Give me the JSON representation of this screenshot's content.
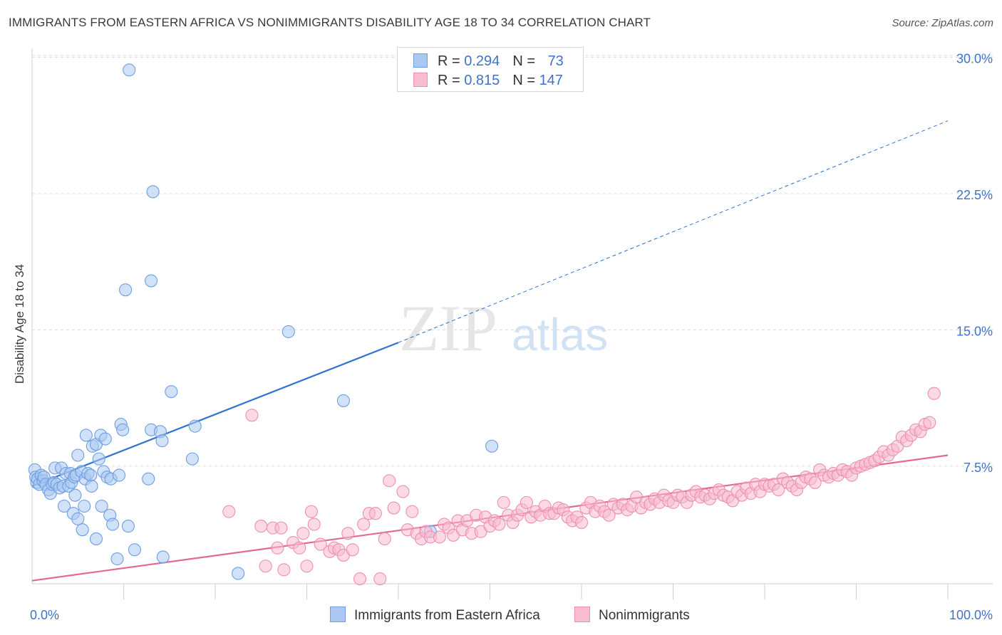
{
  "title": "IMMIGRANTS FROM EASTERN AFRICA VS NONIMMIGRANTS DISABILITY AGE 18 TO 34 CORRELATION CHART",
  "source": "Source: ZipAtlas.com",
  "watermark": {
    "zip": "ZIP",
    "atlas": "atlas"
  },
  "legend": {
    "blue": {
      "r_label": "R = ",
      "r_value": "0.294",
      "n_label": "N = ",
      "n_value": "73"
    },
    "pink": {
      "r_label": "R = ",
      "r_value": "0.815",
      "n_label": "N = ",
      "n_value": "147"
    }
  },
  "colors": {
    "blue_fill": "#aac8f2",
    "blue_stroke": "#6f9ee0",
    "blue_line": "#2f72cf",
    "pink_fill": "#f7bccf",
    "pink_stroke": "#ec8fae",
    "pink_line": "#e2679a",
    "tick_text": "#3f73c8"
  },
  "chart_data": {
    "type": "scatter",
    "title": "IMMIGRANTS FROM EASTERN AFRICA VS NONIMMIGRANTS DISABILITY AGE 18 TO 34 CORRELATION CHART",
    "xlabel": "",
    "ylabel": "Disability Age 18 to 34",
    "xlim": [
      0,
      100
    ],
    "ylim": [
      0,
      31
    ],
    "x_tick_labels": [
      {
        "value": 0,
        "label": "0.0%"
      },
      {
        "value": 100,
        "label": "100.0%"
      }
    ],
    "y_ticks": [
      {
        "value": 7.5,
        "label": "7.5%"
      },
      {
        "value": 15,
        "label": "15.0%"
      },
      {
        "value": 22.5,
        "label": "22.5%"
      },
      {
        "value": 30,
        "label": "30.0%"
      }
    ],
    "grid": true,
    "legend_position": "top-center",
    "series": [
      {
        "name": "Immigrants from Eastern Africa",
        "color": "blue",
        "trend": {
          "x1": 0,
          "y1": 6.4,
          "x2": 40,
          "y2": 14.3,
          "dash_to_x": 100,
          "dash_to_y": 26.5
        },
        "points": [
          [
            0.3,
            7.3
          ],
          [
            0.4,
            6.9
          ],
          [
            0.5,
            6.6
          ],
          [
            0.6,
            6.8
          ],
          [
            0.8,
            6.5
          ],
          [
            1.0,
            7.0
          ],
          [
            1.2,
            6.7
          ],
          [
            1.3,
            6.9
          ],
          [
            1.5,
            6.5
          ],
          [
            1.8,
            6.2
          ],
          [
            2.0,
            6.0
          ],
          [
            2.2,
            6.5
          ],
          [
            2.4,
            6.6
          ],
          [
            2.5,
            7.4
          ],
          [
            2.7,
            6.5
          ],
          [
            3.0,
            6.3
          ],
          [
            3.2,
            7.4
          ],
          [
            3.4,
            6.4
          ],
          [
            3.5,
            5.3
          ],
          [
            3.7,
            7.1
          ],
          [
            4.0,
            6.4
          ],
          [
            4.2,
            7.1
          ],
          [
            4.3,
            6.6
          ],
          [
            4.5,
            4.9
          ],
          [
            4.6,
            6.9
          ],
          [
            4.7,
            5.9
          ],
          [
            4.8,
            7.0
          ],
          [
            5.0,
            4.6
          ],
          [
            5.0,
            8.1
          ],
          [
            5.4,
            7.2
          ],
          [
            5.5,
            4.0
          ],
          [
            5.7,
            5.3
          ],
          [
            5.8,
            6.8
          ],
          [
            5.9,
            9.2
          ],
          [
            6.1,
            7.1
          ],
          [
            6.4,
            7.0
          ],
          [
            6.5,
            6.4
          ],
          [
            6.6,
            8.6
          ],
          [
            7.0,
            8.7
          ],
          [
            7.0,
            3.5
          ],
          [
            7.3,
            7.9
          ],
          [
            7.5,
            9.2
          ],
          [
            7.6,
            5.3
          ],
          [
            7.8,
            7.2
          ],
          [
            8.0,
            9.0
          ],
          [
            8.2,
            6.9
          ],
          [
            8.5,
            4.8
          ],
          [
            8.6,
            6.8
          ],
          [
            8.8,
            4.3
          ],
          [
            9.3,
            2.4
          ],
          [
            9.5,
            7.0
          ],
          [
            9.7,
            9.8
          ],
          [
            9.9,
            9.5
          ],
          [
            10.2,
            17.2
          ],
          [
            10.5,
            4.2
          ],
          [
            10.6,
            29.3
          ],
          [
            11.2,
            2.9
          ],
          [
            12.7,
            6.8
          ],
          [
            13.0,
            17.7
          ],
          [
            13.0,
            9.5
          ],
          [
            13.2,
            22.6
          ],
          [
            14.0,
            9.4
          ],
          [
            14.2,
            8.9
          ],
          [
            14.3,
            2.5
          ],
          [
            15.2,
            11.6
          ],
          [
            17.5,
            7.9
          ],
          [
            17.8,
            9.7
          ],
          [
            22.5,
            1.6
          ],
          [
            28.0,
            14.9
          ],
          [
            34.0,
            11.1
          ],
          [
            43.5,
            3.9
          ],
          [
            50.2,
            8.6
          ]
        ]
      },
      {
        "name": "Nonimmigrants",
        "color": "pink",
        "trend": {
          "x1": 0,
          "y1": 1.2,
          "x2": 100,
          "y2": 8.1
        },
        "points": [
          [
            21.5,
            5.0
          ],
          [
            24.0,
            10.3
          ],
          [
            25.0,
            4.2
          ],
          [
            25.5,
            2.0
          ],
          [
            26.3,
            4.1
          ],
          [
            26.8,
            3.0
          ],
          [
            27.2,
            4.1
          ],
          [
            27.5,
            1.8
          ],
          [
            28.5,
            3.3
          ],
          [
            29.2,
            3.0
          ],
          [
            29.6,
            3.8
          ],
          [
            30.0,
            2.0
          ],
          [
            30.5,
            5.0
          ],
          [
            30.8,
            4.3
          ],
          [
            31.5,
            3.2
          ],
          [
            32.5,
            2.8
          ],
          [
            33.0,
            3.0
          ],
          [
            33.5,
            2.9
          ],
          [
            34.0,
            2.6
          ],
          [
            34.5,
            3.8
          ],
          [
            35.0,
            2.9
          ],
          [
            35.8,
            1.3
          ],
          [
            36.2,
            4.3
          ],
          [
            36.8,
            4.9
          ],
          [
            37.5,
            4.9
          ],
          [
            38.0,
            1.3
          ],
          [
            38.5,
            3.5
          ],
          [
            39.0,
            6.7
          ],
          [
            39.5,
            5.2
          ],
          [
            40.5,
            6.1
          ],
          [
            41.0,
            4.0
          ],
          [
            41.5,
            5.0
          ],
          [
            42.0,
            3.8
          ],
          [
            42.5,
            3.5
          ],
          [
            43.0,
            3.9
          ],
          [
            43.5,
            3.6
          ],
          [
            44.5,
            3.6
          ],
          [
            45.0,
            4.3
          ],
          [
            45.5,
            4.1
          ],
          [
            46.0,
            3.7
          ],
          [
            46.5,
            4.5
          ],
          [
            47.0,
            4.0
          ],
          [
            47.5,
            4.5
          ],
          [
            48.0,
            3.8
          ],
          [
            48.5,
            4.8
          ],
          [
            49.0,
            3.9
          ],
          [
            49.5,
            4.7
          ],
          [
            50.0,
            4.2
          ],
          [
            50.5,
            4.5
          ],
          [
            51.0,
            4.3
          ],
          [
            51.5,
            5.5
          ],
          [
            52.0,
            4.8
          ],
          [
            52.5,
            4.4
          ],
          [
            53.0,
            4.8
          ],
          [
            53.5,
            5.1
          ],
          [
            54.0,
            5.5
          ],
          [
            54.5,
            4.7
          ],
          [
            55.0,
            5.0
          ],
          [
            55.5,
            4.8
          ],
          [
            56.0,
            5.3
          ],
          [
            56.5,
            4.9
          ],
          [
            57.0,
            4.9
          ],
          [
            57.5,
            5.2
          ],
          [
            58.0,
            5.1
          ],
          [
            58.5,
            4.7
          ],
          [
            59.0,
            4.5
          ],
          [
            59.5,
            4.7
          ],
          [
            60.0,
            4.4
          ],
          [
            60.5,
            5.2
          ],
          [
            61.0,
            5.5
          ],
          [
            61.5,
            5.0
          ],
          [
            62.0,
            5.3
          ],
          [
            62.5,
            5.0
          ],
          [
            63.0,
            4.8
          ],
          [
            63.5,
            5.4
          ],
          [
            64.0,
            5.2
          ],
          [
            64.5,
            5.4
          ],
          [
            65.0,
            5.1
          ],
          [
            65.5,
            5.3
          ],
          [
            66.0,
            5.8
          ],
          [
            66.5,
            5.2
          ],
          [
            67.0,
            5.5
          ],
          [
            67.5,
            5.4
          ],
          [
            68.0,
            5.7
          ],
          [
            68.5,
            5.5
          ],
          [
            69.0,
            5.9
          ],
          [
            69.5,
            5.6
          ],
          [
            70.0,
            5.5
          ],
          [
            70.5,
            5.9
          ],
          [
            71.0,
            5.8
          ],
          [
            71.5,
            5.5
          ],
          [
            72.0,
            5.9
          ],
          [
            72.5,
            6.1
          ],
          [
            73.0,
            5.8
          ],
          [
            73.5,
            5.9
          ],
          [
            74.0,
            5.7
          ],
          [
            74.5,
            6.0
          ],
          [
            75.0,
            6.2
          ],
          [
            75.5,
            5.9
          ],
          [
            76.0,
            5.8
          ],
          [
            76.5,
            5.6
          ],
          [
            77.0,
            6.1
          ],
          [
            77.5,
            5.9
          ],
          [
            78.0,
            6.3
          ],
          [
            78.5,
            6.0
          ],
          [
            79.0,
            6.5
          ],
          [
            79.5,
            6.1
          ],
          [
            80.0,
            6.5
          ],
          [
            80.5,
            6.4
          ],
          [
            81.0,
            6.5
          ],
          [
            81.5,
            6.2
          ],
          [
            82.0,
            6.8
          ],
          [
            82.5,
            6.6
          ],
          [
            83.0,
            6.4
          ],
          [
            83.5,
            6.2
          ],
          [
            84.0,
            6.6
          ],
          [
            84.5,
            6.9
          ],
          [
            85.0,
            6.8
          ],
          [
            85.5,
            6.6
          ],
          [
            86.0,
            7.3
          ],
          [
            86.5,
            7.0
          ],
          [
            87.0,
            6.9
          ],
          [
            87.5,
            7.1
          ],
          [
            88.0,
            7.0
          ],
          [
            88.5,
            7.3
          ],
          [
            89.0,
            7.2
          ],
          [
            89.5,
            7.0
          ],
          [
            90.0,
            7.4
          ],
          [
            90.5,
            7.5
          ],
          [
            91.0,
            7.6
          ],
          [
            91.5,
            7.7
          ],
          [
            92.0,
            7.8
          ],
          [
            92.5,
            8.0
          ],
          [
            93.0,
            8.3
          ],
          [
            93.5,
            8.1
          ],
          [
            94.0,
            8.4
          ],
          [
            94.5,
            8.6
          ],
          [
            95.0,
            9.1
          ],
          [
            95.5,
            8.9
          ],
          [
            96.0,
            9.2
          ],
          [
            96.5,
            9.5
          ],
          [
            97.0,
            9.4
          ],
          [
            97.5,
            9.8
          ],
          [
            98.0,
            9.9
          ],
          [
            98.5,
            11.5
          ]
        ]
      }
    ]
  },
  "bottom_legend": {
    "blue_label": "Immigrants from Eastern Africa",
    "pink_label": "Nonimmigrants"
  }
}
